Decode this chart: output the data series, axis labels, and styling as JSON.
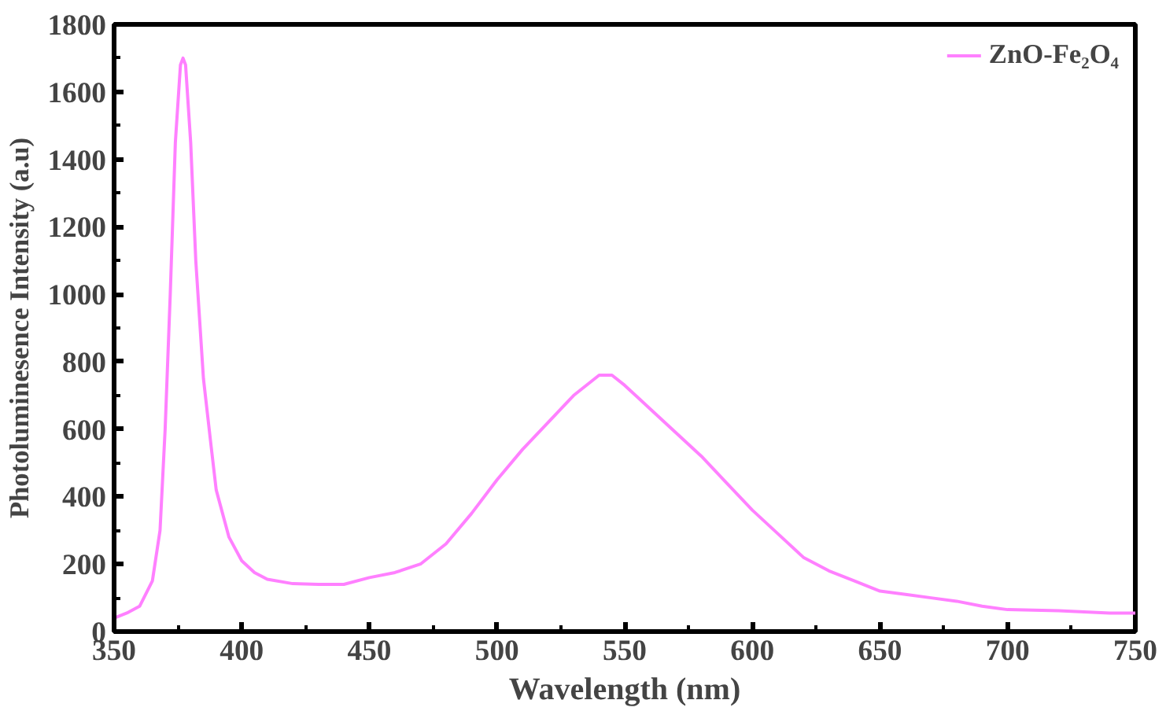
{
  "chart_data": {
    "type": "line",
    "xlabel": "Wavelength (nm)",
    "ylabel": "Photoluminesence Intensity (a.u)",
    "xlim": [
      350,
      750
    ],
    "xticks": [
      350,
      400,
      450,
      500,
      550,
      600,
      650,
      700,
      750
    ],
    "ylim": [
      0,
      1800
    ],
    "yticks": [
      0,
      200,
      400,
      600,
      800,
      1000,
      1200,
      1400,
      1600,
      1800
    ],
    "grid": false,
    "legend": "top right",
    "marker": "none",
    "line_style": "solid",
    "series": [
      {
        "name": "ZnO-Fe₂O₄",
        "color": "#ff80ff",
        "x": [
          350,
          355,
          360,
          365,
          368,
          370,
          372,
          374,
          376,
          377,
          378,
          380,
          382,
          385,
          388,
          390,
          395,
          400,
          405,
          410,
          420,
          430,
          440,
          450,
          460,
          470,
          480,
          490,
          500,
          510,
          520,
          530,
          540,
          545,
          550,
          560,
          570,
          580,
          590,
          600,
          610,
          620,
          630,
          640,
          650,
          660,
          670,
          680,
          690,
          700,
          720,
          740,
          750
        ],
        "values": [
          40,
          55,
          75,
          150,
          300,
          600,
          1000,
          1450,
          1680,
          1700,
          1680,
          1450,
          1100,
          750,
          550,
          420,
          280,
          210,
          175,
          155,
          142,
          140,
          140,
          160,
          175,
          200,
          260,
          350,
          450,
          540,
          620,
          700,
          760,
          760,
          730,
          660,
          590,
          520,
          440,
          360,
          290,
          220,
          180,
          150,
          120,
          110,
          100,
          90,
          75,
          65,
          62,
          55,
          55
        ]
      }
    ]
  }
}
